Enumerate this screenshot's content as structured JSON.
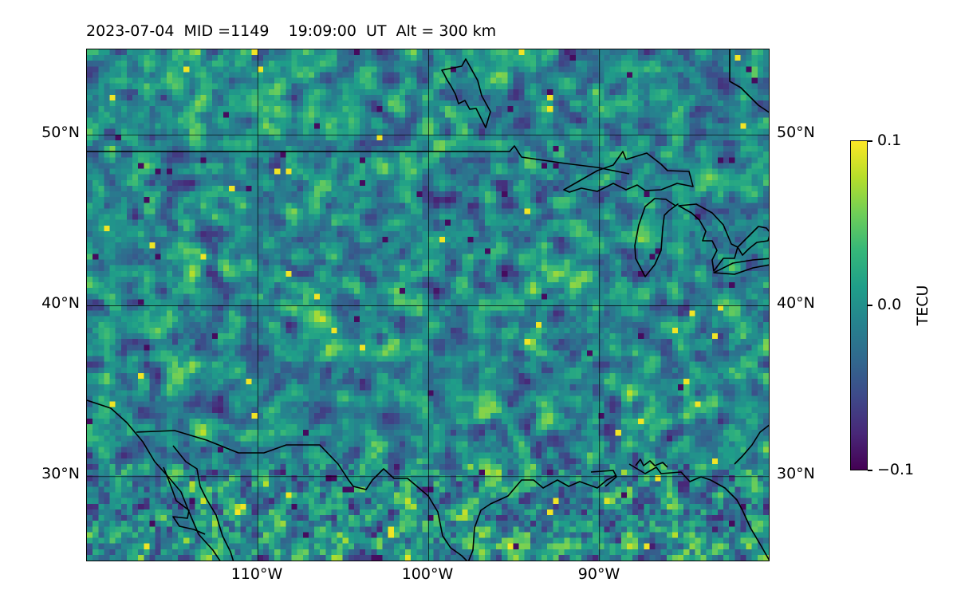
{
  "title": "2023-07-04  MID =1149    19:09:00  UT  Alt = 300 km",
  "map": {
    "extent": {
      "lon": [
        -120,
        -80
      ],
      "lat": [
        25,
        55
      ]
    },
    "lat_ticks": [
      {
        "value": 50,
        "label": "50°N"
      },
      {
        "value": 40,
        "label": "40°N"
      },
      {
        "value": 30,
        "label": "30°N"
      }
    ],
    "lon_ticks": [
      {
        "value": -110,
        "label": "110°W"
      },
      {
        "value": -100,
        "label": "100°W"
      },
      {
        "value": -90,
        "label": "90°W"
      }
    ],
    "field": "TEC perturbation",
    "colormap": "viridis"
  },
  "colorbar": {
    "unit": "TECU",
    "range": [
      -0.1,
      0.1
    ],
    "ticks": [
      {
        "value": 0.1,
        "label": "0.1"
      },
      {
        "value": 0.0,
        "label": "0.0"
      },
      {
        "value": -0.1,
        "label": "−0.1"
      }
    ],
    "colors": [
      "#440154",
      "#482878",
      "#3e4989",
      "#31688e",
      "#26828e",
      "#1f9e89",
      "#35b779",
      "#6ece58",
      "#b5de2b",
      "#fde725"
    ]
  },
  "colors": {
    "coastline": "#000000",
    "gridline": "#000000",
    "background": "#ffffff"
  }
}
